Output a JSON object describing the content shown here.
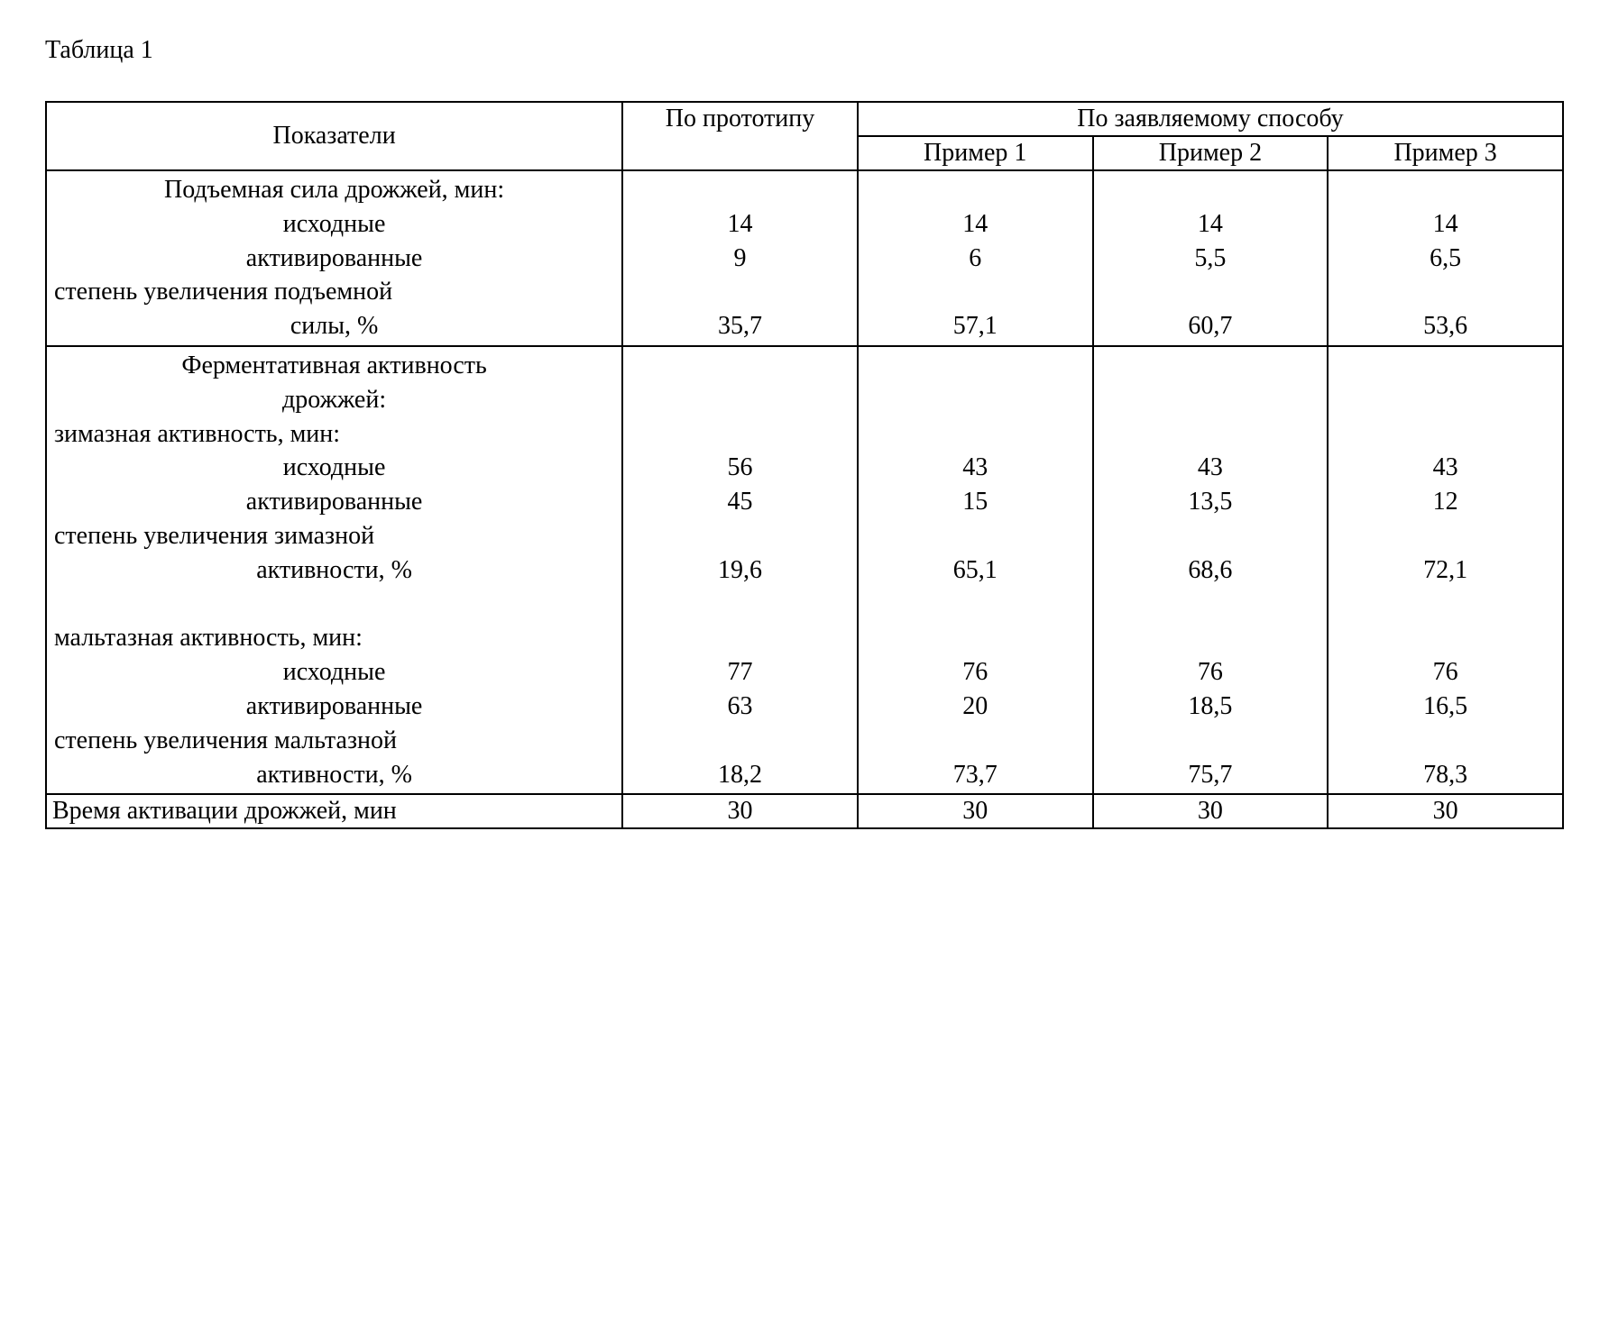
{
  "caption": "Таблица 1",
  "headers": {
    "indicators": "Показатели",
    "prototype": "По прототипу",
    "claimed": "По заявляемому способу",
    "ex1": "Пример 1",
    "ex2": "Пример 2",
    "ex3": "Пример 3"
  },
  "section1": {
    "labels": [
      "Подъемная сила дрожжей, мин:",
      "исходные",
      "активированные",
      "степень увеличения подъемной",
      "силы, %"
    ],
    "align": [
      "center",
      "center",
      "center",
      "left",
      "center"
    ],
    "proto": [
      "",
      "14",
      "9",
      "",
      "35,7"
    ],
    "e1": [
      "",
      "14",
      "6",
      "",
      "57,1"
    ],
    "e2": [
      "",
      "14",
      "5,5",
      "",
      "60,7"
    ],
    "e3": [
      "",
      "14",
      "6,5",
      "",
      "53,6"
    ]
  },
  "section2": {
    "labels": [
      "Ферментативная активность",
      "дрожжей:",
      "зимазная активность, мин:",
      "исходные",
      "активированные",
      "степень увеличения зимазной",
      "активности, %",
      "",
      "мальтазная активность, мин:",
      "исходные",
      "активированные",
      "степень увеличения мальтазной",
      "активности, %"
    ],
    "align": [
      "center",
      "center",
      "left",
      "center",
      "center",
      "left",
      "center",
      "left",
      "left",
      "center",
      "center",
      "left",
      "center"
    ],
    "proto": [
      "",
      "",
      "",
      "56",
      "45",
      "",
      "19,6",
      "",
      "",
      "77",
      "63",
      "",
      "18,2"
    ],
    "e1": [
      "",
      "",
      "",
      "43",
      "15",
      "",
      "65,1",
      "",
      "",
      "76",
      "20",
      "",
      "73,7"
    ],
    "e2": [
      "",
      "",
      "",
      "43",
      "13,5",
      "",
      "68,6",
      "",
      "",
      "76",
      "18,5",
      "",
      "75,7"
    ],
    "e3": [
      "",
      "",
      "",
      "43",
      "12",
      "",
      "72,1",
      "",
      "",
      "76",
      "16,5",
      "",
      "78,3"
    ]
  },
  "section3": {
    "label": "Время активации дрожжей, мин",
    "proto": "30",
    "e1": "30",
    "e2": "30",
    "e3": "30"
  }
}
